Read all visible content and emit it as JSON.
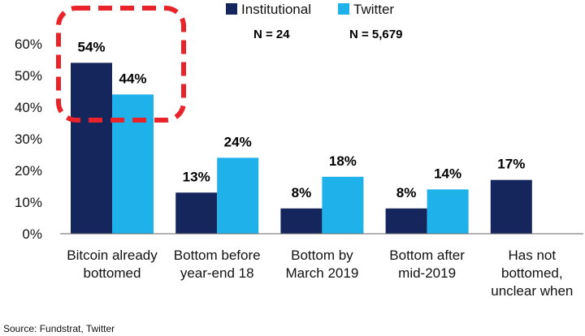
{
  "chart_data": {
    "type": "bar",
    "categories": [
      [
        "Bitcoin already",
        "bottomed"
      ],
      [
        "Bottom before",
        "year-end 18"
      ],
      [
        "Bottom by",
        "March 2019"
      ],
      [
        "Bottom after",
        "mid-2019"
      ],
      [
        "Has not",
        "bottomed,",
        "unclear when"
      ]
    ],
    "series": [
      {
        "name": "Institutional",
        "n_label": "N = 24",
        "color": "#14265c",
        "values": [
          54,
          13,
          8,
          8,
          17
        ],
        "labels": [
          "54%",
          "13%",
          "8%",
          "8%",
          "17%"
        ]
      },
      {
        "name": "Twitter",
        "n_label": "N = 5,679",
        "color": "#1fb2ea",
        "values": [
          44,
          24,
          18,
          14,
          null
        ],
        "labels": [
          "44%",
          "24%",
          "18%",
          "14%",
          ""
        ]
      }
    ],
    "ylim": [
      0,
      60
    ],
    "yticks": [
      "0%",
      "10%",
      "20%",
      "30%",
      "40%",
      "50%",
      "60%"
    ],
    "highlight": {
      "category_index": 0,
      "style": "dashed-rounded-box",
      "color": "#e8232a"
    },
    "legend_position": "top",
    "grid": false
  },
  "source": "Source: Fundstrat, Twitter"
}
